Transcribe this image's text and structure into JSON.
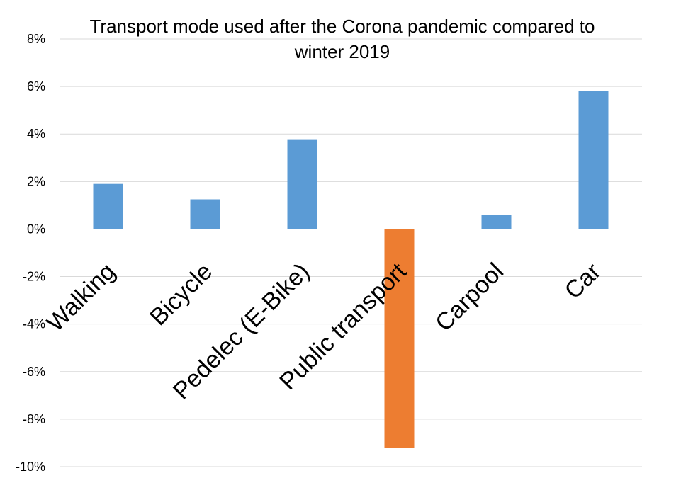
{
  "chart_data": {
    "type": "bar",
    "title_lines": [
      "Transport mode used after the Corona pandemic compared to",
      "winter 2019"
    ],
    "categories": [
      "Walking",
      "Bicycle",
      "Pedelec (E-Bike)",
      "Public transport",
      "Carpool",
      "Car"
    ],
    "values": [
      1.9,
      1.25,
      3.78,
      -9.2,
      0.6,
      5.82
    ],
    "ylim": [
      -10,
      8
    ],
    "yticks": [
      8,
      6,
      4,
      2,
      0,
      -2,
      -4,
      -6,
      -8,
      -10
    ],
    "ytick_labels": [
      "8%",
      "6%",
      "4%",
      "2%",
      "0%",
      "-2%",
      "-4%",
      "-6%",
      "-8%",
      "-10%"
    ],
    "grid": true,
    "colors": {
      "positive": "#5b9bd5",
      "negative": "#ed7d31",
      "grid": "#d9d9d9"
    }
  }
}
